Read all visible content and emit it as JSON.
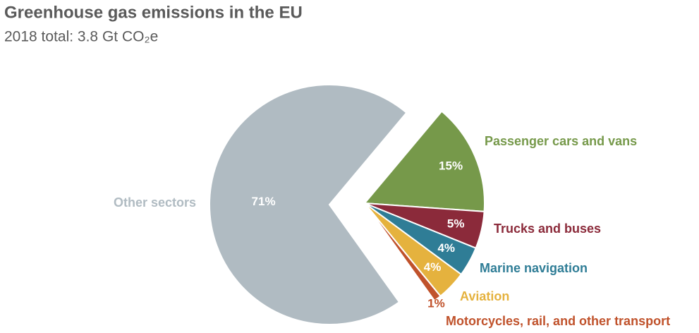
{
  "chart_data": {
    "type": "pie",
    "title": "Greenhouse gas emissions in the EU",
    "subtitle": "2018 total: 3.8 Gt CO₂e",
    "categories": [
      "Passenger cars and vans",
      "Trucks and buses",
      "Marine navigation",
      "Aviation",
      "Motorcycles, rail, and other transport",
      "Other sectors"
    ],
    "values": [
      15,
      5,
      4,
      4,
      1,
      71
    ],
    "value_labels": [
      "15%",
      "5%",
      "4%",
      "4%",
      "1%",
      "71%"
    ],
    "colors": [
      "#76994a",
      "#8b2a3a",
      "#2f7d96",
      "#e5b23e",
      "#c0522b",
      "#b0bbc2"
    ]
  }
}
